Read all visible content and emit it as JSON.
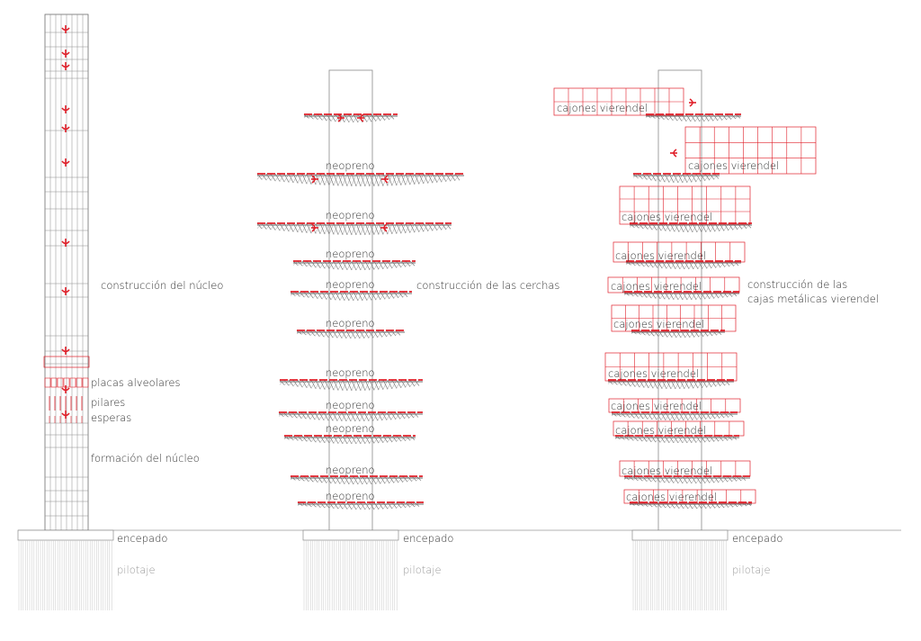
{
  "colors": {
    "line": "#6d6d6d",
    "light_line": "#b9b9b9",
    "accent": "#e0202a",
    "text": "#333333"
  },
  "icons": [
    "red-arrow-icon"
  ],
  "stage_1": {
    "label_core_construction": "construcción del núcleo",
    "label_hollow_slabs": "placas alveolares",
    "label_pillars": "pilares",
    "label_starter_bars": "esperas",
    "label_core_formation": "formación del núcleo",
    "label_pile_cap": "encepado",
    "label_piling": "pilotaje"
  },
  "stage_2": {
    "label_truss_construction": "construcción de las cerchas",
    "neoprene_labels": [
      "neopreno",
      "neopreno",
      "neopreno",
      "neopreno",
      "neopreno",
      "neopreno",
      "neopreno",
      "neopreno",
      "neopreno",
      "neopreno"
    ],
    "label_pile_cap": "encepado",
    "label_piling": "pilotaje"
  },
  "stage_3": {
    "label_boxes_line1": "construcción de las",
    "label_boxes_line2": "cajas metálicas vierendel",
    "box_labels": [
      "cajones vierendel",
      "cajones vierendel",
      "cajones vierendel",
      "cajones vierendel",
      "cajones vierendel",
      "cajones vierendel",
      "cajones vierendel",
      "cajones vierendel",
      "cajones vierendel",
      "cajones vierendel",
      "cajones vierendel"
    ],
    "label_pile_cap": "encepado",
    "label_piling": "pilotaje"
  }
}
